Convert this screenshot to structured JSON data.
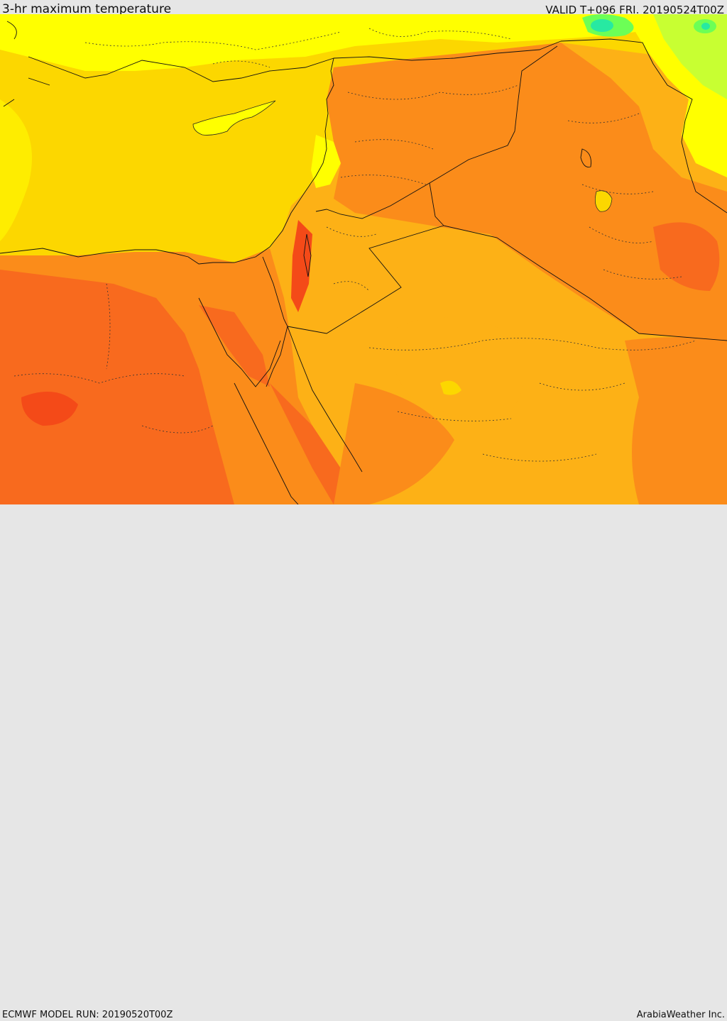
{
  "header": {
    "title": "3-hr maximum temperature",
    "valid": "VALID T+096 FRI. 20190524T00Z"
  },
  "footer": {
    "model_run": "ECMWF MODEL RUN: 20190520T00Z",
    "credit": "ArabiaWeather Inc."
  },
  "map": {
    "variable": "3-hr maximum temperature",
    "palette": {
      "orange_red": "#f86a1e",
      "red": "#f44a18",
      "orange": "#fb8c1a",
      "amber": "#fdb116",
      "gold": "#fcd700",
      "yellow": "#ffff00",
      "lime": "#c8ff32",
      "green": "#6cff56",
      "cyan_green": "#27e9a2"
    },
    "border_style": "solid",
    "internal_border_style": "dotted"
  }
}
